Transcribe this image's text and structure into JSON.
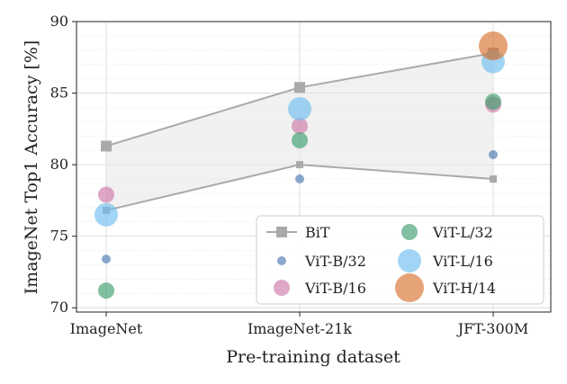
{
  "chart_data": {
    "type": "scatter",
    "title": "",
    "xlabel": "Pre-training dataset",
    "ylabel": "ImageNet Top1 Accuracy [%]",
    "categories": [
      "ImageNet",
      "ImageNet-21k",
      "JFT-300M"
    ],
    "ylim": [
      69.7,
      90
    ],
    "yticks": [
      70,
      75,
      80,
      85,
      90
    ],
    "grid": true,
    "legend_position": "bottom-right",
    "bit_band": {
      "name": "BiT",
      "upper": [
        81.3,
        85.4,
        87.8
      ],
      "lower": [
        76.8,
        80.0,
        79.0
      ],
      "color": "#aaaaaa"
    },
    "series": [
      {
        "name": "ViT-B/32",
        "color": "#4c78b0",
        "size": "small",
        "values": [
          73.4,
          79.0,
          80.7
        ]
      },
      {
        "name": "ViT-B/16",
        "color": "#cc79a7",
        "size": "medium",
        "values": [
          77.9,
          82.7,
          84.2
        ]
      },
      {
        "name": "ViT-L/32",
        "color": "#3d9e6e",
        "size": "medium",
        "values": [
          71.2,
          81.7,
          84.4
        ]
      },
      {
        "name": "ViT-L/16",
        "color": "#70bfef",
        "size": "large",
        "values": [
          76.5,
          83.9,
          87.2
        ]
      },
      {
        "name": "ViT-H/14",
        "color": "#d9722e",
        "size": "xlarge",
        "values": [
          null,
          null,
          88.3
        ]
      }
    ]
  }
}
